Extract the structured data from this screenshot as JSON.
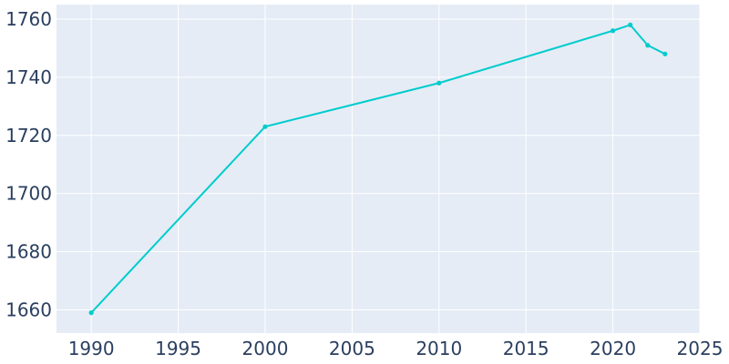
{
  "chart_data": {
    "type": "line",
    "title": "",
    "xlabel": "",
    "ylabel": "",
    "x": [
      1990,
      2000,
      2010,
      2020,
      2021,
      2022,
      2023
    ],
    "series": [
      {
        "values": [
          1659,
          1723,
          1738,
          1756,
          1758,
          1751,
          1748
        ]
      }
    ],
    "xlim": [
      1988,
      2025
    ],
    "ylim": [
      1652,
      1765
    ],
    "x_ticks": [
      1990,
      1995,
      2000,
      2005,
      2010,
      2015,
      2020,
      2025
    ],
    "y_ticks": [
      1660,
      1680,
      1700,
      1720,
      1740,
      1760
    ],
    "grid": true,
    "colors": {
      "line": "#00cccc",
      "plot_bg": "#e5ecf6",
      "grid": "#ffffff",
      "text": "#2a3f5f"
    }
  }
}
